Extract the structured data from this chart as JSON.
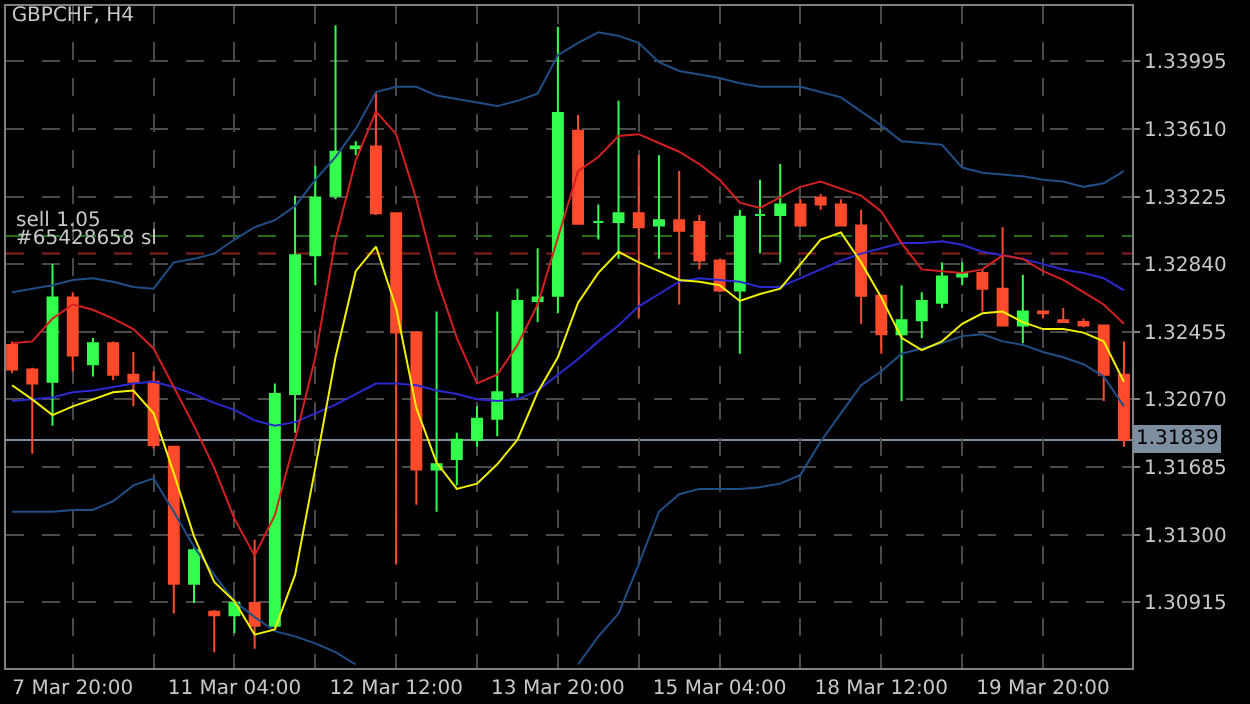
{
  "chart_data": {
    "type": "candlestick",
    "title": "GBPCHF, H4",
    "categories": [
      null,
      null,
      null,
      "7 Mar 20:00",
      null,
      null,
      null,
      null,
      null,
      null,
      null,
      "11 Mar 04:00",
      null,
      null,
      null,
      null,
      null,
      null,
      null,
      "12 Mar 12:00",
      null,
      null,
      null,
      null,
      null,
      null,
      null,
      "13 Mar 20:00",
      null,
      null,
      null,
      null,
      null,
      null,
      null,
      "15 Mar 04:00",
      null,
      null,
      null,
      null,
      null,
      null,
      null,
      "18 Mar 12:00",
      null,
      null,
      null,
      null,
      null,
      null,
      null,
      "19 Mar 20:00",
      null,
      null,
      null,
      null
    ],
    "ohlc": [
      [
        1.3238,
        1.324,
        1.3222,
        1.3224
      ],
      [
        1.3224,
        1.3225,
        1.3176,
        1.3216
      ],
      [
        1.3217,
        1.3284,
        1.3192,
        1.3265
      ],
      [
        1.3265,
        1.3268,
        1.3223,
        1.3232
      ],
      [
        1.3227,
        1.3242,
        1.322,
        1.3239
      ],
      [
        1.3239,
        1.324,
        1.3218,
        1.3221
      ],
      [
        1.3221,
        1.3234,
        1.3203,
        1.3217
      ],
      [
        1.3217,
        1.3223,
        1.3179,
        1.3181
      ],
      [
        1.318,
        1.318,
        1.3085,
        1.3102
      ],
      [
        1.3102,
        1.3123,
        1.3091,
        1.3121
      ],
      [
        1.3086,
        1.3087,
        1.3063,
        1.3084
      ],
      [
        1.3084,
        1.3093,
        1.3074,
        1.3091
      ],
      [
        1.3091,
        1.3127,
        1.3065,
        1.3078
      ],
      [
        1.3078,
        1.3216,
        1.3077,
        1.321
      ],
      [
        1.321,
        1.3323,
        1.3188,
        1.3289
      ],
      [
        1.3289,
        1.334,
        1.3272,
        1.3322
      ],
      [
        1.3323,
        1.342,
        1.3321,
        1.3348
      ],
      [
        1.335,
        1.3354,
        1.3346,
        1.3351
      ],
      [
        1.3351,
        1.3382,
        1.3312,
        1.3313
      ],
      [
        1.3313,
        1.3313,
        1.3113,
        1.3245
      ],
      [
        1.3245,
        1.3245,
        1.3147,
        1.3167
      ],
      [
        1.3167,
        1.3257,
        1.3143,
        1.317
      ],
      [
        1.3173,
        1.3188,
        1.3158,
        1.3184
      ],
      [
        1.3184,
        1.3203,
        1.318,
        1.3196
      ],
      [
        1.3196,
        1.3257,
        1.3186,
        1.3211
      ],
      [
        1.3211,
        1.327,
        1.3208,
        1.3263
      ],
      [
        1.3263,
        1.3293,
        1.3251,
        1.3265
      ],
      [
        1.3266,
        1.3419,
        1.3256,
        1.337
      ],
      [
        1.336,
        1.3369,
        1.3307,
        1.3307
      ],
      [
        1.3308,
        1.3318,
        1.3298,
        1.3308
      ],
      [
        1.3308,
        1.3377,
        1.3287,
        1.3313
      ],
      [
        1.3313,
        1.3346,
        1.3253,
        1.3305
      ],
      [
        1.3306,
        1.3346,
        1.3287,
        1.3309
      ],
      [
        1.3309,
        1.3337,
        1.3261,
        1.3303
      ],
      [
        1.3308,
        1.3312,
        1.3281,
        1.3286
      ],
      [
        1.3286,
        1.3286,
        1.3268,
        1.3269
      ],
      [
        1.3269,
        1.3315,
        1.3233,
        1.3311
      ],
      [
        1.3312,
        1.3332,
        1.329,
        1.3312
      ],
      [
        1.3312,
        1.3341,
        1.3285,
        1.3318
      ],
      [
        1.3318,
        1.3321,
        1.3306,
        1.3306
      ],
      [
        1.3322,
        1.3324,
        1.3315,
        1.3318
      ],
      [
        1.3318,
        1.3321,
        1.3306,
        1.3306
      ],
      [
        1.3306,
        1.3315,
        1.325,
        1.3266
      ],
      [
        1.3266,
        1.3266,
        1.3233,
        1.3244
      ],
      [
        1.3244,
        1.3272,
        1.3206,
        1.3252
      ],
      [
        1.3252,
        1.3268,
        1.3242,
        1.3263
      ],
      [
        1.3262,
        1.3285,
        1.3259,
        1.3277
      ],
      [
        1.3277,
        1.3285,
        1.3272,
        1.3279
      ],
      [
        1.3279,
        1.3281,
        1.3257,
        1.327
      ],
      [
        1.327,
        1.3305,
        1.3249,
        1.3249
      ],
      [
        1.3249,
        1.3278,
        1.3239,
        1.3257
      ],
      [
        1.3257,
        1.3257,
        1.3253,
        1.3256
      ],
      [
        1.3252,
        1.3259,
        1.3251,
        1.3251
      ],
      [
        1.3251,
        1.3253,
        1.3248,
        1.3249
      ],
      [
        1.3249,
        1.3249,
        1.3206,
        1.3221
      ],
      [
        1.3221,
        1.324,
        1.318,
        1.3184
      ]
    ],
    "colors": [
      "#ff4b2b",
      "#ff4b2b",
      "#33ff4d",
      "#ff4b2b",
      "#33ff4d",
      "#ff4b2b",
      "#ff4b2b",
      "#ff4b2b",
      "#ff4b2b",
      "#33ff4d",
      "#ff4b2b",
      "#33ff4d",
      "#ff4b2b",
      "#33ff4d",
      "#33ff4d",
      "#33ff4d",
      "#33ff4d",
      "#33ff4d",
      "#ff4b2b",
      "#ff4b2b",
      "#ff4b2b",
      "#33ff4d",
      "#33ff4d",
      "#33ff4d",
      "#33ff4d",
      "#33ff4d",
      "#33ff4d",
      "#33ff4d",
      "#ff4b2b",
      "#33ff4d",
      "#33ff4d",
      "#ff4b2b",
      "#33ff4d",
      "#ff4b2b",
      "#ff4b2b",
      "#ff4b2b",
      "#33ff4d",
      "#33ff4d",
      "#33ff4d",
      "#ff4b2b",
      "#ff4b2b",
      "#ff4b2b",
      "#ff4b2b",
      "#ff4b2b",
      "#33ff4d",
      "#33ff4d",
      "#33ff4d",
      "#33ff4d",
      "#ff4b2b",
      "#ff4b2b",
      "#33ff4d",
      "#ff4b2b",
      "#ff4b2b",
      "#ff4b2b",
      "#ff4b2b",
      "#ff4b2b"
    ],
    "series": [
      {
        "type": "line",
        "color": "#1f4f86",
        "values": [
          1.3268,
          1.327,
          1.3272,
          1.3275,
          1.3276,
          1.3274,
          1.3271,
          1.327,
          1.3285,
          1.3287,
          1.329,
          1.3298,
          1.3305,
          1.3309,
          1.3317,
          1.3332,
          1.3345,
          1.3361,
          1.3382,
          1.3385,
          1.3385,
          1.338,
          1.3378,
          1.3376,
          1.3374,
          1.3377,
          1.3381,
          1.3403,
          1.341,
          1.3416,
          1.3414,
          1.341,
          1.3399,
          1.3394,
          1.3392,
          1.339,
          1.3387,
          1.3385,
          1.3385,
          1.3385,
          1.3382,
          1.3379,
          1.3371,
          1.3363,
          1.3354,
          1.3353,
          1.3352,
          1.3339,
          1.3336,
          1.3335,
          1.3334,
          1.3332,
          1.3331,
          1.3328,
          1.333,
          1.3337
        ]
      },
      {
        "type": "line",
        "color": "#2a2ad0",
        "values": [
          1.3206,
          1.3207,
          1.3208,
          1.3211,
          1.3212,
          1.3214,
          1.3216,
          1.3217,
          1.3214,
          1.321,
          1.3205,
          1.3201,
          1.3195,
          1.3192,
          1.3194,
          1.3199,
          1.3204,
          1.321,
          1.3216,
          1.3216,
          1.3215,
          1.3212,
          1.321,
          1.3207,
          1.3206,
          1.3207,
          1.3212,
          1.3221,
          1.323,
          1.324,
          1.3249,
          1.326,
          1.3267,
          1.3274,
          1.3276,
          1.3275,
          1.3274,
          1.3271,
          1.3271,
          1.3276,
          1.3281,
          1.3286,
          1.329,
          1.3293,
          1.3296,
          1.3296,
          1.3297,
          1.3295,
          1.3291,
          1.3289,
          1.3287,
          1.3284,
          1.3281,
          1.3279,
          1.3276,
          1.3269
        ]
      },
      {
        "type": "line",
        "color": "#1f4f86",
        "values": [
          1.3143,
          1.3143,
          1.3143,
          1.3144,
          1.3144,
          1.3149,
          1.3158,
          1.3162,
          1.3143,
          1.3123,
          1.3107,
          1.3092,
          1.3083,
          1.3075,
          1.3072,
          1.3068,
          1.3063,
          1.3056,
          null,
          null,
          null,
          null,
          null,
          null,
          null,
          null,
          null,
          null,
          1.3056,
          1.3072,
          1.3085,
          1.3113,
          1.3143,
          1.3153,
          1.3156,
          1.3156,
          1.3156,
          1.3157,
          1.3159,
          1.3164,
          1.3183,
          1.3199,
          1.3215,
          1.3223,
          1.3233,
          1.3236,
          1.3239,
          1.3243,
          1.3244,
          1.324,
          1.3238,
          1.3234,
          1.3231,
          1.3227,
          1.322,
          1.3203
        ]
      },
      {
        "type": "line",
        "color": "#d42020",
        "values": [
          1.3239,
          1.324,
          1.3253,
          1.3261,
          1.3258,
          1.3253,
          1.3247,
          1.3236,
          1.3214,
          1.3192,
          1.3168,
          1.3139,
          1.3118,
          1.3141,
          1.3184,
          1.3231,
          1.3298,
          1.3343,
          1.3371,
          1.3358,
          1.3321,
          1.3276,
          1.3242,
          1.3216,
          1.3221,
          1.3238,
          1.3261,
          1.3299,
          1.3337,
          1.3345,
          1.3357,
          1.3358,
          1.3353,
          1.3348,
          1.3341,
          1.3332,
          1.3319,
          1.3316,
          1.3322,
          1.3328,
          1.3331,
          1.3327,
          1.3323,
          1.3314,
          1.3296,
          1.3281,
          1.328,
          1.3279,
          1.3281,
          1.3289,
          1.3287,
          1.328,
          1.3275,
          1.3268,
          1.3261,
          1.325
        ]
      },
      {
        "type": "line",
        "color": "#f0f000",
        "values": [
          1.3215,
          1.3207,
          1.3198,
          1.3203,
          1.3207,
          1.3211,
          1.3212,
          1.3199,
          1.3165,
          1.3129,
          1.3103,
          1.3092,
          1.3073,
          1.3076,
          1.3107,
          1.3168,
          1.3231,
          1.328,
          1.3294,
          1.3259,
          1.3202,
          1.3171,
          1.3156,
          1.3159,
          1.317,
          1.3184,
          1.3211,
          1.3231,
          1.3262,
          1.3279,
          1.3291,
          1.3285,
          1.328,
          1.3275,
          1.3274,
          1.3272,
          1.3263,
          1.3267,
          1.327,
          1.3284,
          1.3298,
          1.3302,
          1.3285,
          1.3265,
          1.3242,
          1.3235,
          1.324,
          1.325,
          1.3256,
          1.3257,
          1.3251,
          1.3247,
          1.3247,
          1.3245,
          1.324,
          1.3217
        ]
      }
    ],
    "ref_lines": [
      {
        "axis": "y",
        "value": 1.33,
        "label": "sell 1.05",
        "color": "#1e6e1e",
        "line_style": "dashed"
      },
      {
        "axis": "y",
        "value": 1.329,
        "label": "#65428658 sl",
        "color": "#8c1e1e",
        "line_style": "dashed"
      },
      {
        "axis": "y",
        "value": 1.31839,
        "label": "1.31839",
        "color": "#7d8ea0",
        "line_style": "solid"
      }
    ],
    "ylim": [
      1.3054,
      1.3431
    ],
    "yticks": [
      {
        "value": 1.30915,
        "label": "1.30915"
      },
      {
        "value": 1.313,
        "label": "1.31300"
      },
      1.31685,
      {
        "value": 1.3207,
        "label": "1.32070"
      },
      1.32455,
      {
        "value": 1.3284,
        "label": "1.32840"
      },
      1.33225,
      {
        "value": 1.3361,
        "label": "1.33610"
      },
      1.33995
    ],
    "grid": true
  }
}
